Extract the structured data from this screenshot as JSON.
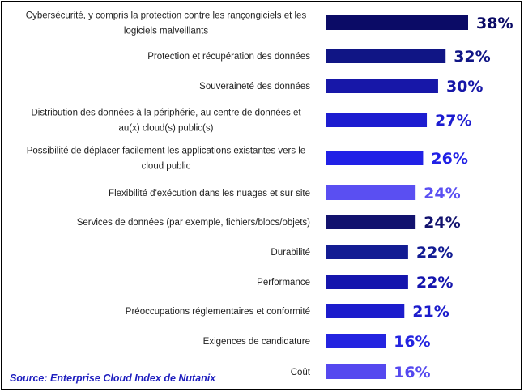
{
  "chart_data": {
    "type": "bar",
    "orientation": "horizontal",
    "categories": [
      [
        "Cybersécurité, y compris la protection contre les rançongiciels et les",
        "logiciels malveillants"
      ],
      [
        "Protection et récupération des données"
      ],
      [
        "Souveraineté des données"
      ],
      [
        "Distribution des données à la périphérie, au centre de données et",
        "au(x) cloud(s) public(s)"
      ],
      [
        "Possibilité de déplacer facilement les applications existantes vers le",
        "cloud public"
      ],
      [
        "Flexibilité d'exécution dans les nuages et sur site"
      ],
      [
        "Services de données (par exemple, fichiers/blocs/objets)"
      ],
      [
        "Durabilité"
      ],
      [
        "Performance"
      ],
      [
        "Préoccupations réglementaires et conformité"
      ],
      [
        "Exigences de candidature"
      ],
      [
        "Coût"
      ]
    ],
    "values": [
      38,
      32,
      30,
      27,
      26,
      24,
      24,
      22,
      22,
      21,
      16,
      16
    ],
    "value_labels": [
      "38%",
      "32%",
      "30%",
      "27%",
      "26%",
      "24%",
      "24%",
      "22%",
      "22%",
      "21%",
      "16%",
      "16%"
    ],
    "bar_colors": [
      "#0b0b66",
      "#101585",
      "#1717a8",
      "#1d1dd0",
      "#2121e6",
      "#5a4ff2",
      "#12126e",
      "#131c93",
      "#1515ad",
      "#1c1ccc",
      "#2424e0",
      "#5548ef"
    ],
    "label_colors": [
      "#0b0b66",
      "#101585",
      "#1717a8",
      "#1d1dd0",
      "#2121e6",
      "#5a4ff2",
      "#12126e",
      "#131c93",
      "#1515ad",
      "#1c1ccc",
      "#2424e0",
      "#5548ef"
    ],
    "xlim": [
      0,
      38
    ],
    "grid": false,
    "legend": "none"
  },
  "source": "Source: Enterprise Cloud Index de Nutanix"
}
